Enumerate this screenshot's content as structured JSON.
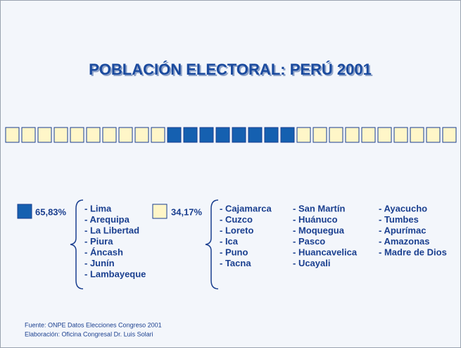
{
  "title": "POBLACIÓN ELECTORAL: PERÚ 2001",
  "groups": [
    {
      "percent": "65,83%",
      "columns": [
        [
          "- Lima",
          "- Arequipa",
          "- La Libertad",
          "- Piura",
          "- Áncash",
          "- Junín",
          "- Lambayeque"
        ]
      ]
    },
    {
      "percent": "34,17%",
      "columns": [
        [
          "- Cajamarca",
          "- Cuzco",
          "- Loreto",
          "- Ica",
          "- Puno",
          "- Tacna"
        ],
        [
          "- San Martín",
          "- Huánuco",
          "- Moquegua",
          "- Pasco",
          "- Huancavelica",
          "- Ucayali"
        ],
        [
          "- Ayacucho",
          "- Tumbes",
          "- Apurímac",
          "- Amazonas",
          "- Madre de Dios"
        ]
      ]
    }
  ],
  "footer": [
    "Fuente: ONPE Datos Elecciones Congreso 2001",
    "Elaboración: Oficina Congresal Dr. Luis Solari"
  ]
}
